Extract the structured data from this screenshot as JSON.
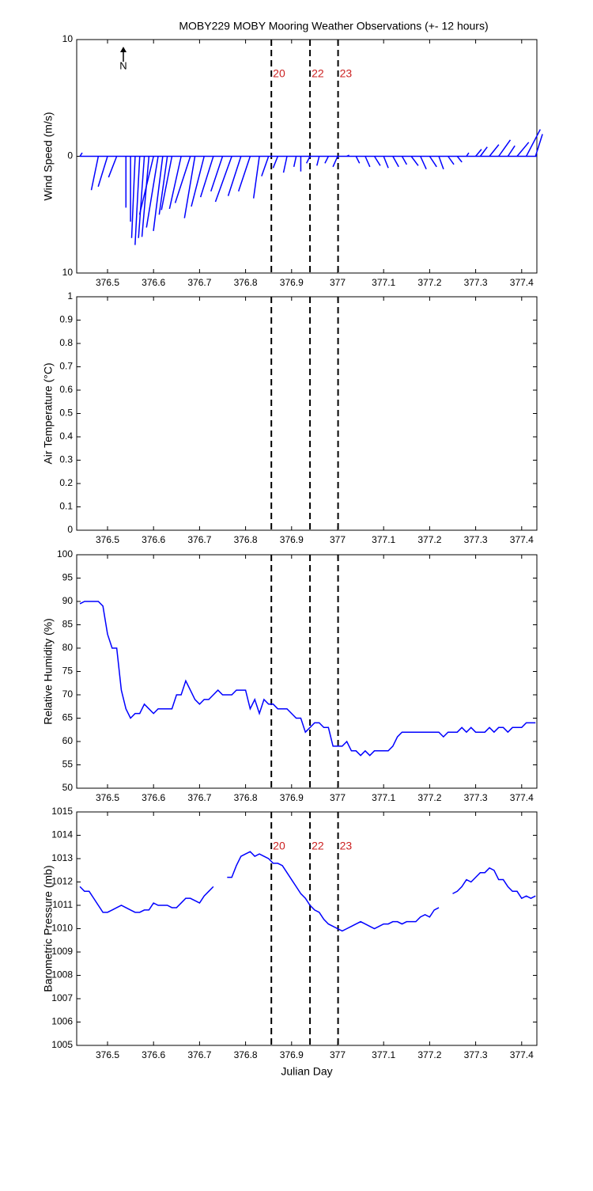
{
  "event_lines": {
    "x": [
      376.856,
      376.94,
      377.001
    ],
    "labels": [
      "20",
      "22",
      "23"
    ],
    "color": "#cc2222"
  },
  "chart_data": [
    {
      "type": "stick",
      "title": "MOBY229 MOBY Mooring Weather Observations (+- 12 hours)",
      "ylabel": "Wind Speed (m/s)",
      "north_label": "N",
      "show_event_labels": true,
      "xlim": [
        376.433,
        377.433
      ],
      "xticks": [
        376.5,
        376.6,
        376.7,
        376.8,
        376.9,
        377,
        377.1,
        377.2,
        377.3,
        377.4
      ],
      "ylim": [
        -10,
        10
      ],
      "yticks": [
        {
          "value": -10,
          "label": "10"
        },
        0,
        10
      ],
      "series": [
        {
          "color": "#0000ff",
          "x": [
            376.44,
            376.48,
            376.5,
            376.52,
            376.54,
            376.55,
            376.56,
            376.57,
            376.58,
            376.59,
            376.6,
            376.61,
            376.62,
            376.63,
            376.64,
            376.66,
            376.68,
            376.69,
            376.71,
            376.73,
            376.75,
            376.77,
            376.79,
            376.81,
            376.83,
            376.85,
            376.87,
            376.89,
            376.91,
            376.92,
            376.94,
            376.96,
            376.98,
            377.0,
            377.02,
            377.04,
            377.06,
            377.08,
            377.1,
            377.12,
            377.14,
            377.16,
            377.18,
            377.2,
            377.22,
            377.24,
            377.26,
            377.28,
            377.3,
            377.31,
            377.33,
            377.35,
            377.37,
            377.39,
            377.41,
            377.43
          ],
          "u": [
            0.2,
            -0.6,
            -0.8,
            -0.7,
            0,
            0,
            -0.3,
            -0.4,
            -0.5,
            -0.6,
            -1.2,
            -1.0,
            -0.8,
            -0.7,
            -0.9,
            -1.0,
            -1.3,
            -0.9,
            -1.1,
            -1.1,
            -1.0,
            -1.4,
            -1.1,
            -1.0,
            -0.5,
            -0.6,
            -0.4,
            -0.3,
            -0.2,
            0,
            -0.3,
            -0.2,
            -0.3,
            -0.4,
            0.2,
            0.3,
            0.4,
            0.5,
            0.4,
            0.5,
            0.4,
            0.6,
            0.5,
            0.6,
            0.4,
            0.5,
            0.4,
            0.2,
            0.5,
            0.6,
            0.8,
            1.0,
            0.6,
            1.0,
            1.2,
            0.6
          ],
          "v": [
            0.3,
            -2.9,
            -2.6,
            -1.8,
            -4.4,
            -5.6,
            -7.0,
            -7.6,
            -7.0,
            -6.9,
            -5.0,
            -6.1,
            -6.4,
            -5.0,
            -4.6,
            -4.5,
            -4.0,
            -5.3,
            -4.3,
            -3.5,
            -3.0,
            -3.9,
            -3.4,
            -3.0,
            -3.6,
            -1.7,
            -1.0,
            -1.4,
            -0.9,
            -1.3,
            -0.6,
            -0.8,
            -0.6,
            -0.9,
            0.1,
            -0.6,
            -0.9,
            -0.8,
            -1.0,
            -0.9,
            -0.7,
            -0.8,
            -1.1,
            -0.9,
            -1.1,
            -0.7,
            -0.5,
            0.3,
            0.6,
            0.8,
            1.0,
            1.4,
            0.9,
            1.2,
            2.3,
            1.9
          ]
        }
      ]
    },
    {
      "type": "line",
      "ylabel": "Air Temperature (°C)",
      "show_event_labels": false,
      "xlim": [
        376.433,
        377.433
      ],
      "xticks": [
        376.5,
        376.6,
        376.7,
        376.8,
        376.9,
        377,
        377.1,
        377.2,
        377.3,
        377.4
      ],
      "ylim": [
        0,
        1
      ],
      "yticks": [
        0,
        0.1,
        0.2,
        0.3,
        0.4,
        0.5,
        0.6,
        0.7,
        0.8,
        0.9,
        1
      ],
      "series": []
    },
    {
      "type": "line",
      "ylabel": "Relative Humidity (%)",
      "show_event_labels": false,
      "xlim": [
        376.433,
        377.433
      ],
      "xticks": [
        376.5,
        376.6,
        376.7,
        376.8,
        376.9,
        377,
        377.1,
        377.2,
        377.3,
        377.4
      ],
      "ylim": [
        50,
        100
      ],
      "yticks": [
        50,
        55,
        60,
        65,
        70,
        75,
        80,
        85,
        90,
        95,
        100
      ],
      "series": [
        {
          "color": "#0000ff",
          "x": [
            376.44,
            376.45,
            376.46,
            376.47,
            376.48,
            376.49,
            376.5,
            376.51,
            376.52,
            376.53,
            376.54,
            376.55,
            376.56,
            376.57,
            376.58,
            376.59,
            376.6,
            376.61,
            376.62,
            376.63,
            376.64,
            376.65,
            376.66,
            376.67,
            376.68,
            376.69,
            376.7,
            376.71,
            376.72,
            376.73,
            376.74,
            376.75,
            376.76,
            376.77,
            376.78,
            376.79,
            376.8,
            376.81,
            376.82,
            376.83,
            376.84,
            376.85,
            376.86,
            376.87,
            376.88,
            376.89,
            376.9,
            376.91,
            376.92,
            376.93,
            376.94,
            376.95,
            376.96,
            376.97,
            376.98,
            376.99,
            377.0,
            377.01,
            377.02,
            377.03,
            377.04,
            377.05,
            377.06,
            377.07,
            377.08,
            377.09,
            377.1,
            377.11,
            377.12,
            377.13,
            377.14,
            377.15,
            377.16,
            377.17,
            377.18,
            377.19,
            377.2,
            377.21,
            377.22,
            377.23,
            377.24,
            377.25,
            377.26,
            377.27,
            377.28,
            377.29,
            377.3,
            377.31,
            377.32,
            377.33,
            377.34,
            377.35,
            377.36,
            377.37,
            377.38,
            377.39,
            377.4,
            377.41,
            377.42,
            377.43
          ],
          "values": [
            89.5,
            90,
            90,
            90,
            90,
            89,
            83,
            80,
            80,
            71,
            67,
            65,
            66,
            66,
            68,
            67,
            66,
            67,
            67,
            67,
            67,
            70,
            70,
            73,
            71,
            69,
            68,
            69,
            69,
            70,
            71,
            70,
            70,
            70,
            71,
            71,
            71,
            67,
            69,
            66,
            69,
            68,
            68,
            67,
            67,
            67,
            66,
            65,
            65,
            62,
            63,
            64,
            64,
            63,
            63,
            59,
            59,
            59,
            60,
            58,
            58,
            57,
            58,
            57,
            58,
            58,
            58,
            58,
            59,
            61,
            62,
            62,
            62,
            62,
            62,
            62,
            62,
            62,
            62,
            61,
            62,
            62,
            62,
            63,
            62,
            63,
            62,
            62,
            62,
            63,
            62,
            63,
            63,
            62,
            63,
            63,
            63,
            64,
            64,
            64
          ]
        }
      ]
    },
    {
      "type": "line",
      "ylabel": "Barometric Pressure (mb)",
      "xlabel": "Julian Day",
      "show_event_labels": true,
      "xlim": [
        376.433,
        377.433
      ],
      "xticks": [
        376.5,
        376.6,
        376.7,
        376.8,
        376.9,
        377,
        377.1,
        377.2,
        377.3,
        377.4
      ],
      "ylim": [
        1005,
        1015
      ],
      "yticks": [
        1005,
        1006,
        1007,
        1008,
        1009,
        1010,
        1011,
        1012,
        1013,
        1014,
        1015
      ],
      "series": [
        {
          "color": "#0000ff",
          "x": [
            376.44,
            376.45,
            376.46,
            376.47,
            376.48,
            376.49,
            376.5,
            376.51,
            376.52,
            376.53,
            376.54,
            376.55,
            376.56,
            376.57,
            376.58,
            376.59,
            376.6,
            376.61,
            376.62,
            376.63,
            376.64,
            376.65,
            376.66,
            376.67,
            376.68,
            376.69,
            376.7,
            376.71,
            376.72,
            376.73,
            376.74,
            376.75,
            376.76,
            376.77,
            376.78,
            376.79,
            376.8,
            376.81,
            376.82,
            376.83,
            376.84,
            376.85,
            376.86,
            376.87,
            376.88,
            376.89,
            376.9,
            376.91,
            376.92,
            376.93,
            376.94,
            376.95,
            376.96,
            376.97,
            376.98,
            376.99,
            377.0,
            377.01,
            377.02,
            377.03,
            377.04,
            377.05,
            377.06,
            377.07,
            377.08,
            377.09,
            377.1,
            377.11,
            377.12,
            377.13,
            377.14,
            377.15,
            377.16,
            377.17,
            377.18,
            377.19,
            377.2,
            377.21,
            377.22,
            377.23,
            377.24,
            377.25,
            377.26,
            377.27,
            377.28,
            377.29,
            377.3,
            377.31,
            377.32,
            377.33,
            377.34,
            377.35,
            377.36,
            377.37,
            377.38,
            377.39,
            377.4,
            377.41,
            377.42,
            377.43
          ],
          "values": [
            1011.8,
            1011.6,
            1011.6,
            1011.3,
            1011.0,
            1010.7,
            1010.7,
            1010.8,
            1010.9,
            1011.0,
            1010.9,
            1010.8,
            1010.7,
            1010.7,
            1010.8,
            1010.8,
            1011.1,
            1011.0,
            1011.0,
            1011.0,
            1010.9,
            1010.9,
            1011.1,
            1011.3,
            1011.3,
            1011.2,
            1011.1,
            1011.4,
            1011.6,
            1011.8,
            null,
            null,
            1012.2,
            1012.2,
            1012.7,
            1013.1,
            1013.2,
            1013.3,
            1013.1,
            1013.2,
            1013.1,
            1013.0,
            1012.8,
            1012.8,
            1012.7,
            1012.4,
            1012.1,
            1011.8,
            1011.5,
            1011.3,
            1011.0,
            1010.8,
            1010.7,
            1010.4,
            1010.2,
            1010.1,
            1010.0,
            1009.9,
            1010.0,
            1010.1,
            1010.2,
            1010.3,
            1010.2,
            1010.1,
            1010.0,
            1010.1,
            1010.2,
            1010.2,
            1010.3,
            1010.3,
            1010.2,
            1010.3,
            1010.3,
            1010.3,
            1010.5,
            1010.6,
            1010.5,
            1010.8,
            1010.9,
            null,
            null,
            1011.5,
            1011.6,
            1011.8,
            1012.1,
            1012.0,
            1012.2,
            1012.4,
            1012.4,
            1012.6,
            1012.5,
            1012.1,
            1012.1,
            1011.8,
            1011.6,
            1011.6,
            1011.3,
            1011.4,
            1011.3,
            1011.4
          ]
        }
      ]
    }
  ]
}
